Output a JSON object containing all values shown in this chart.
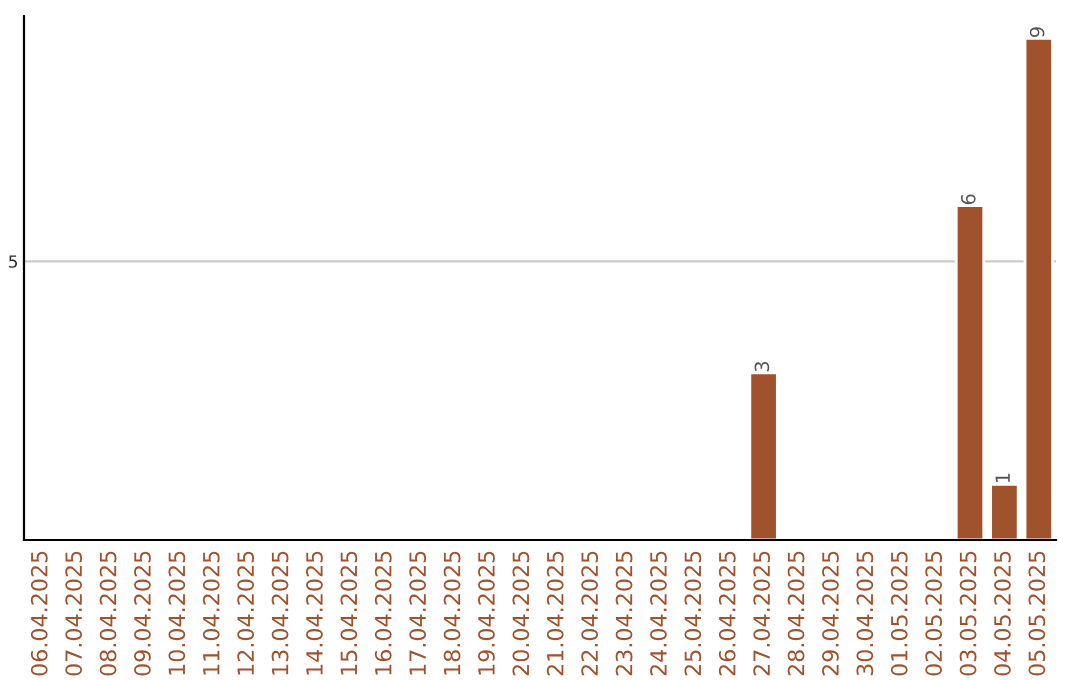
{
  "chart_data": {
    "type": "bar",
    "categories": [
      "06.04.2025",
      "07.04.2025",
      "08.04.2025",
      "09.04.2025",
      "10.04.2025",
      "11.04.2025",
      "12.04.2025",
      "13.04.2025",
      "14.04.2025",
      "15.04.2025",
      "16.04.2025",
      "17.04.2025",
      "18.04.2025",
      "19.04.2025",
      "20.04.2025",
      "21.04.2025",
      "22.04.2025",
      "23.04.2025",
      "24.04.2025",
      "25.04.2025",
      "26.04.2025",
      "27.04.2025",
      "28.04.2025",
      "29.04.2025",
      "30.04.2025",
      "01.05.2025",
      "02.05.2025",
      "03.05.2025",
      "04.05.2025",
      "05.05.2025"
    ],
    "values": [
      null,
      null,
      null,
      null,
      null,
      null,
      null,
      null,
      null,
      null,
      null,
      null,
      null,
      null,
      null,
      null,
      null,
      null,
      null,
      null,
      null,
      3,
      null,
      null,
      null,
      null,
      null,
      6,
      1,
      9
    ],
    "color": "#a0522d",
    "ylim": [
      0,
      9.4
    ],
    "yticks": [
      5
    ],
    "grid": "y",
    "data_labels": true
  }
}
